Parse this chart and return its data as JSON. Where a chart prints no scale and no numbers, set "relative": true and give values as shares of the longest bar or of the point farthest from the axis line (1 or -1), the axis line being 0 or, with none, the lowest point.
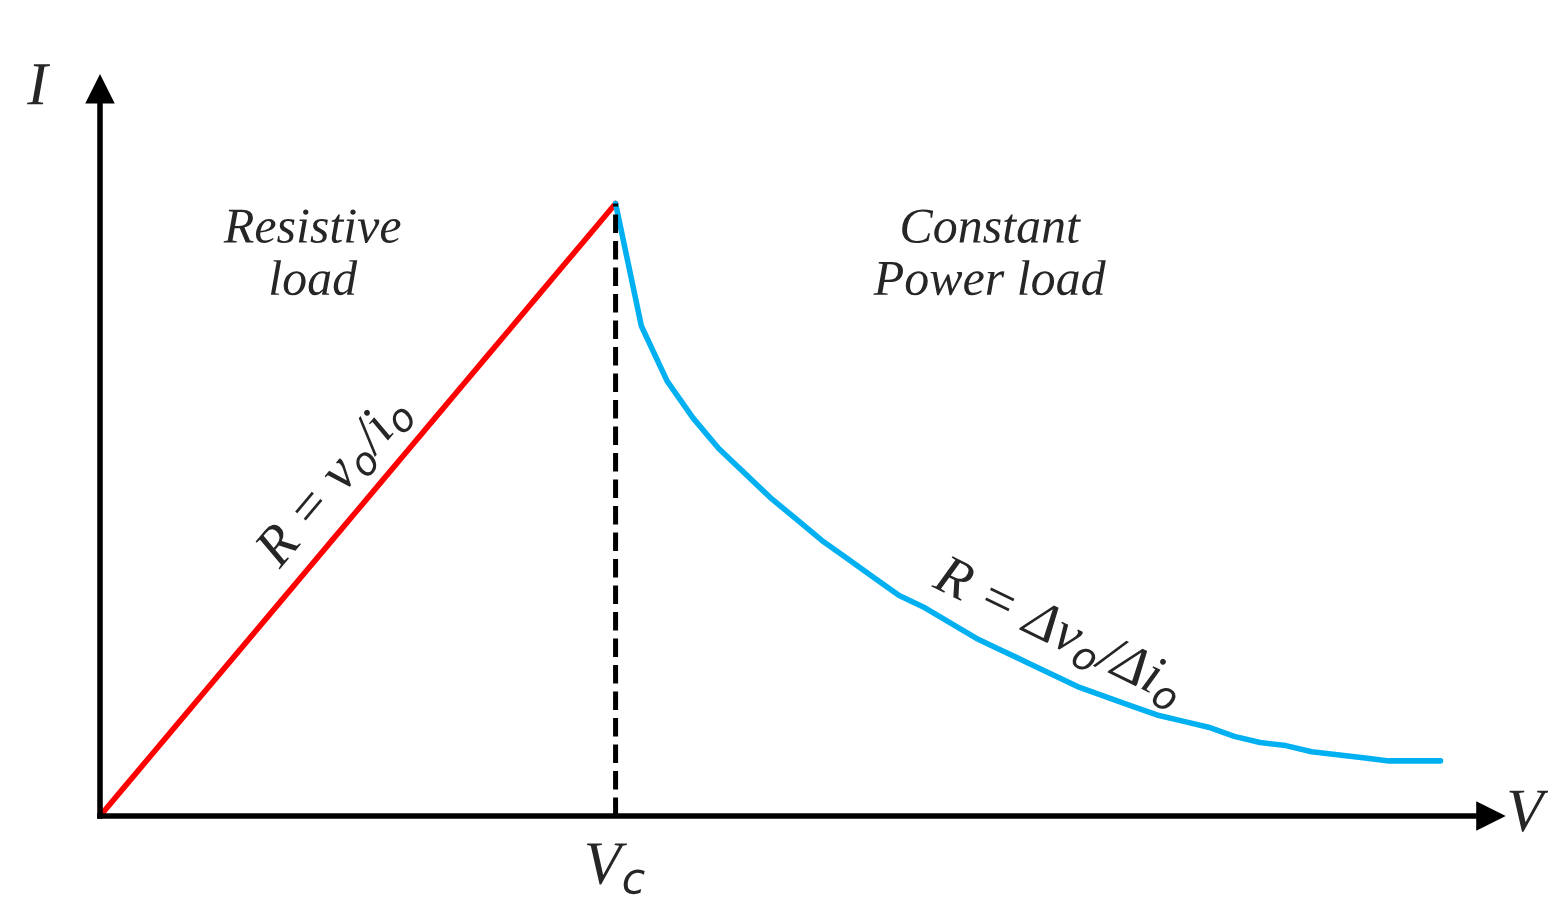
{
  "chart_data": {
    "type": "line",
    "relative": true,
    "xlabel": "V",
    "ylabel": "I",
    "categories": [
      null,
      null,
      null,
      null,
      null,
      null,
      null,
      null,
      null,
      null,
      null,
      null,
      null,
      null,
      null,
      null,
      null,
      null,
      null,
      null,
      null,
      null,
      null,
      null,
      null,
      null,
      null,
      null,
      null,
      null,
      null,
      null,
      null,
      null,
      null,
      null,
      null,
      null,
      null,
      null,
      null,
      null,
      null,
      null,
      null,
      null,
      null,
      null,
      null,
      null,
      null,
      null,
      null
    ],
    "series": [
      {
        "color": "#ff0000",
        "values": [
          0,
          0.05,
          0.1,
          0.15,
          0.2,
          0.25,
          0.3,
          0.35,
          0.4,
          0.45,
          0.5,
          0.55,
          0.6,
          0.65,
          0.7,
          0.75,
          0.8,
          0.85,
          0.9,
          0.95,
          1,
          null,
          null,
          null,
          null,
          null,
          null,
          null,
          null,
          null,
          null,
          null,
          null,
          null,
          null,
          null,
          null,
          null,
          null,
          null,
          null,
          null,
          null,
          null,
          null,
          null,
          null,
          null,
          null,
          null,
          null,
          null,
          null
        ]
      },
      {
        "color": "#00b0f0",
        "values": [
          null,
          null,
          null,
          null,
          null,
          null,
          null,
          null,
          null,
          null,
          null,
          null,
          null,
          null,
          null,
          null,
          null,
          null,
          null,
          null,
          1,
          0.8,
          0.71,
          0.65,
          0.6,
          0.56,
          0.52,
          0.485,
          0.45,
          0.42,
          0.39,
          0.36,
          0.34,
          0.315,
          0.29,
          0.27,
          0.25,
          0.23,
          0.21,
          0.195,
          0.18,
          0.165,
          0.155,
          0.145,
          0.13,
          0.12,
          0.115,
          0.105,
          0.1,
          0.095,
          0.09,
          0.09,
          0.09
        ]
      }
    ],
    "annotations": [
      "Resistive\nload",
      "Constant\nPower load",
      "R = v$_{o}$/i$_{o}$",
      "R = Δv$_{o}$/Δi$_{o}$",
      "V$_{c}$"
    ],
    "marker": "none",
    "line_style": "solid"
  }
}
